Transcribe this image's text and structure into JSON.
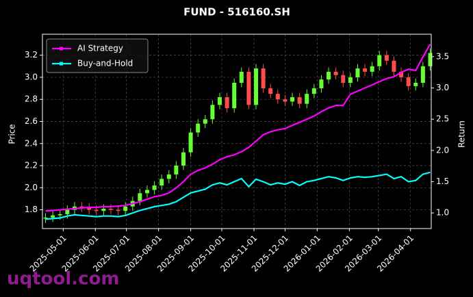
{
  "chart_data": {
    "type": "candlestick",
    "title": "FUND - 516160.SH",
    "ylabel": "Price",
    "y2label": "Return",
    "watermark": "uqtool.com",
    "grid": true,
    "legend": "upper left",
    "up_color": "#66ff33",
    "down_color": "#ff4d4d",
    "x": [
      "2025-04-14",
      "2025-04-21",
      "2025-04-28",
      "2025-05-05",
      "2025-05-12",
      "2025-05-19",
      "2025-05-26",
      "2025-06-02",
      "2025-06-09",
      "2025-06-16",
      "2025-06-23",
      "2025-06-30",
      "2025-07-07",
      "2025-07-14",
      "2025-07-21",
      "2025-07-28",
      "2025-08-04",
      "2025-08-11",
      "2025-08-18",
      "2025-08-25",
      "2025-09-01",
      "2025-09-08",
      "2025-09-15",
      "2025-09-22",
      "2025-09-29",
      "2025-10-06",
      "2025-10-13",
      "2025-10-20",
      "2025-10-27",
      "2025-11-03",
      "2025-11-10",
      "2025-11-17",
      "2025-11-24",
      "2025-12-01",
      "2025-12-08",
      "2025-12-15",
      "2025-12-22",
      "2025-12-29",
      "2026-01-05",
      "2026-01-12",
      "2026-01-19",
      "2026-01-26",
      "2026-02-02",
      "2026-02-09",
      "2026-02-16",
      "2026-02-23",
      "2026-03-02",
      "2026-03-09",
      "2026-03-16",
      "2026-03-23",
      "2026-03-30",
      "2026-04-06",
      "2026-04-13",
      "2026-04-20"
    ],
    "open": [
      1.72,
      1.73,
      1.75,
      1.76,
      1.8,
      1.83,
      1.82,
      1.8,
      1.79,
      1.81,
      1.8,
      1.79,
      1.83,
      1.88,
      1.95,
      1.98,
      2.02,
      2.08,
      2.12,
      2.2,
      2.32,
      2.5,
      2.58,
      2.62,
      2.75,
      2.82,
      2.72,
      2.95,
      3.05,
      2.75,
      3.08,
      2.9,
      2.85,
      2.8,
      2.78,
      2.82,
      2.76,
      2.85,
      2.9,
      2.98,
      3.05,
      3.02,
      2.95,
      3.0,
      3.08,
      3.05,
      3.1,
      3.2,
      3.15,
      3.05,
      3.0,
      2.92,
      2.95,
      3.1
    ],
    "high": [
      1.77,
      1.79,
      1.8,
      1.84,
      1.87,
      1.87,
      1.86,
      1.84,
      1.85,
      1.85,
      1.84,
      1.87,
      1.92,
      1.99,
      2.02,
      2.06,
      2.12,
      2.16,
      2.24,
      2.36,
      2.54,
      2.62,
      2.66,
      2.79,
      2.86,
      2.86,
      2.99,
      3.09,
      3.09,
      3.12,
      3.12,
      2.94,
      2.89,
      2.84,
      2.86,
      2.86,
      2.89,
      2.94,
      3.02,
      3.09,
      3.09,
      3.06,
      3.04,
      3.12,
      3.12,
      3.14,
      3.24,
      3.24,
      3.19,
      3.09,
      3.04,
      2.99,
      3.14,
      3.26
    ],
    "low": [
      1.68,
      1.69,
      1.71,
      1.72,
      1.76,
      1.78,
      1.76,
      1.75,
      1.75,
      1.76,
      1.75,
      1.75,
      1.79,
      1.84,
      1.91,
      1.94,
      1.98,
      2.04,
      2.08,
      2.16,
      2.28,
      2.46,
      2.54,
      2.58,
      2.71,
      2.68,
      2.68,
      2.91,
      2.71,
      2.71,
      2.86,
      2.81,
      2.76,
      2.74,
      2.74,
      2.72,
      2.72,
      2.81,
      2.86,
      2.94,
      2.98,
      2.91,
      2.91,
      2.96,
      3.01,
      3.01,
      3.06,
      3.11,
      3.01,
      2.96,
      2.88,
      2.88,
      2.91,
      3.06
    ],
    "close": [
      1.73,
      1.75,
      1.76,
      1.8,
      1.83,
      1.82,
      1.8,
      1.79,
      1.81,
      1.8,
      1.79,
      1.83,
      1.88,
      1.95,
      1.98,
      2.02,
      2.08,
      2.12,
      2.2,
      2.32,
      2.5,
      2.58,
      2.62,
      2.75,
      2.82,
      2.72,
      2.95,
      3.05,
      2.75,
      3.08,
      2.9,
      2.85,
      2.8,
      2.78,
      2.82,
      2.76,
      2.85,
      2.9,
      2.98,
      3.05,
      3.02,
      2.95,
      3.0,
      3.08,
      3.05,
      3.1,
      3.2,
      3.15,
      3.05,
      3.0,
      2.92,
      2.95,
      3.1,
      3.22
    ],
    "series": [
      {
        "name": "AI Strategy",
        "color": "#ff00ff",
        "axis": "y2",
        "values": [
          1.03,
          1.04,
          1.05,
          1.06,
          1.07,
          1.08,
          1.09,
          1.09,
          1.1,
          1.1,
          1.11,
          1.12,
          1.15,
          1.18,
          1.22,
          1.26,
          1.28,
          1.32,
          1.4,
          1.5,
          1.62,
          1.68,
          1.72,
          1.78,
          1.85,
          1.9,
          1.93,
          1.98,
          2.05,
          2.15,
          2.25,
          2.3,
          2.33,
          2.35,
          2.4,
          2.45,
          2.5,
          2.55,
          2.62,
          2.68,
          2.72,
          2.72,
          2.9,
          2.95,
          3.0,
          3.05,
          3.1,
          3.15,
          3.18,
          3.25,
          3.3,
          3.28,
          3.5,
          3.7
        ]
      },
      {
        "name": "Buy-and-Hold",
        "color": "#00ffff",
        "axis": "y2",
        "values": [
          0.9,
          0.91,
          0.92,
          0.95,
          0.97,
          0.96,
          0.95,
          0.94,
          0.95,
          0.95,
          0.94,
          0.96,
          1.0,
          1.04,
          1.07,
          1.1,
          1.12,
          1.14,
          1.18,
          1.25,
          1.32,
          1.35,
          1.38,
          1.45,
          1.48,
          1.45,
          1.5,
          1.55,
          1.42,
          1.54,
          1.5,
          1.45,
          1.48,
          1.46,
          1.5,
          1.44,
          1.5,
          1.52,
          1.55,
          1.58,
          1.56,
          1.52,
          1.56,
          1.58,
          1.57,
          1.58,
          1.6,
          1.62,
          1.55,
          1.58,
          1.5,
          1.52,
          1.62,
          1.65
        ]
      }
    ],
    "xlim": [
      "2025-04-11",
      "2026-04-21"
    ],
    "xticks": [
      "2025-05-01",
      "2025-06-01",
      "2025-07-01",
      "2025-08-01",
      "2025-09-01",
      "2025-10-01",
      "2025-11-01",
      "2025-12-01",
      "2026-01-01",
      "2026-02-01",
      "2026-03-01",
      "2026-04-01"
    ],
    "ylim": [
      1.63,
      3.39
    ],
    "yticks": [
      1.8,
      {
        "value": 2,
        "label": "2.0"
      },
      2.2,
      2.4,
      2.6,
      2.8,
      {
        "value": 3,
        "label": "3.0"
      },
      3.2
    ],
    "y2lim": [
      0.75,
      3.86
    ],
    "y2ticks": [
      {
        "value": 1,
        "label": "1.0"
      },
      1.5,
      {
        "value": 2,
        "label": "2.0"
      },
      2.5,
      {
        "value": 3,
        "label": "3.0"
      },
      3.5
    ]
  }
}
